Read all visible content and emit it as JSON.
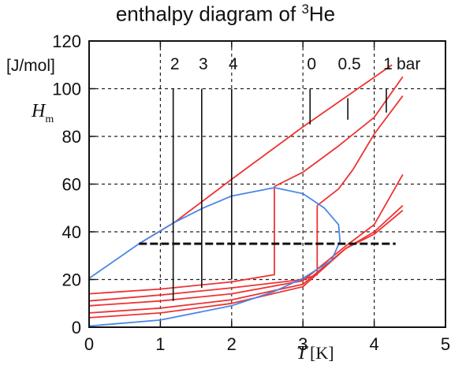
{
  "chart_data": {
    "type": "line",
    "title": "enthalpy diagram of ³He",
    "title_main": "enthalpy diagram of ",
    "title_sup": "3",
    "title_tail": "He",
    "ylabel_unit": "[J/mol]",
    "ylabel_symbol": "H",
    "ylabel_sub": "m",
    "xlabel_symbol": "T",
    "xlabel_unit": "[K]",
    "xlim": [
      0,
      5
    ],
    "ylim": [
      0,
      120
    ],
    "xticks": [
      0,
      1,
      2,
      3,
      4,
      5
    ],
    "yticks": [
      0,
      20,
      40,
      60,
      80,
      100,
      120
    ],
    "grid": true,
    "grid_x": [
      1,
      2,
      3,
      4
    ],
    "grid_y": [
      20,
      40,
      60,
      80,
      100
    ],
    "colors": {
      "isobar": "#ee3333",
      "coexistence": "#4a86e8",
      "marker": "#111111"
    },
    "series": [
      {
        "key": "isobar-0bar",
        "role": "isobar",
        "points": [
          [
            0.7,
            35
          ],
          [
            1.2,
            44
          ],
          [
            2.0,
            62
          ],
          [
            3.0,
            84
          ],
          [
            4.25,
            110
          ]
        ]
      },
      {
        "key": "isobar-0.5bar",
        "role": "isobar",
        "points": [
          [
            2.6,
            59
          ],
          [
            3.0,
            65
          ],
          [
            3.5,
            76
          ],
          [
            4.0,
            88
          ],
          [
            4.4,
            105
          ]
        ]
      },
      {
        "key": "isobar-0.5bar-low",
        "role": "isobar",
        "points": [
          [
            0,
            14
          ],
          [
            1,
            16
          ],
          [
            2,
            19
          ],
          [
            2.6,
            22
          ],
          [
            2.6,
            59
          ]
        ]
      },
      {
        "key": "isobar-1bar",
        "role": "isobar",
        "points": [
          [
            3.2,
            51
          ],
          [
            3.5,
            58
          ],
          [
            3.7,
            66
          ],
          [
            4.0,
            81
          ],
          [
            4.4,
            97
          ]
        ]
      },
      {
        "key": "isobar-1bar-low",
        "role": "isobar",
        "points": [
          [
            0,
            11
          ],
          [
            1,
            13.5
          ],
          [
            2,
            16.5
          ],
          [
            3.0,
            20
          ],
          [
            3.2,
            22
          ],
          [
            3.2,
            51
          ]
        ]
      },
      {
        "key": "isobar-2bar",
        "role": "isobar",
        "points": [
          [
            0,
            9
          ],
          [
            1,
            11
          ],
          [
            2,
            14
          ],
          [
            3,
            19.5
          ],
          [
            3.6,
            34
          ],
          [
            4.0,
            43
          ],
          [
            4.4,
            64
          ]
        ]
      },
      {
        "key": "isobar-3bar",
        "role": "isobar",
        "points": [
          [
            0,
            6
          ],
          [
            1,
            8
          ],
          [
            2,
            11.5
          ],
          [
            3,
            18
          ],
          [
            3.6,
            33
          ],
          [
            4.0,
            40
          ],
          [
            4.4,
            51
          ]
        ]
      },
      {
        "key": "isobar-4bar",
        "role": "isobar",
        "points": [
          [
            0,
            4
          ],
          [
            1,
            6
          ],
          [
            2,
            10
          ],
          [
            3,
            17
          ],
          [
            3.6,
            33
          ],
          [
            4.0,
            39
          ],
          [
            4.4,
            49
          ]
        ]
      },
      {
        "key": "coexistence-curve",
        "role": "coexistence",
        "points": [
          [
            0,
            20.5
          ],
          [
            0.7,
            35
          ],
          [
            1.2,
            44
          ],
          [
            1.6,
            50
          ],
          [
            2.0,
            55
          ],
          [
            2.6,
            58.5
          ],
          [
            3.0,
            56
          ],
          [
            3.3,
            50
          ],
          [
            3.5,
            43
          ],
          [
            3.52,
            36
          ],
          [
            3.4,
            28
          ],
          [
            3.0,
            20.5
          ],
          [
            2.6,
            15
          ],
          [
            2.0,
            9
          ],
          [
            1.0,
            3
          ],
          [
            0,
            0.5
          ]
        ]
      }
    ],
    "pressure_markers": [
      {
        "label": "2",
        "x": 1.18,
        "y_top": 100,
        "y_bottom": 11
      },
      {
        "label": "3",
        "x": 1.58,
        "y_top": 100,
        "y_bottom": 16.5
      },
      {
        "label": "4",
        "x": 2.0,
        "y_top": 100,
        "y_bottom": 20
      },
      {
        "label": "0",
        "x": 3.1,
        "y_top": 100,
        "y_bottom": 85
      },
      {
        "label": "0.5",
        "x": 3.63,
        "y_top": 96,
        "y_bottom": 87
      },
      {
        "label": "1",
        "x": 4.17,
        "y_top": 100,
        "y_bottom": 90
      }
    ],
    "unit_label": "bar",
    "reference_line": {
      "x_start": 0.7,
      "x_end": 4.3,
      "y": 35
    }
  }
}
